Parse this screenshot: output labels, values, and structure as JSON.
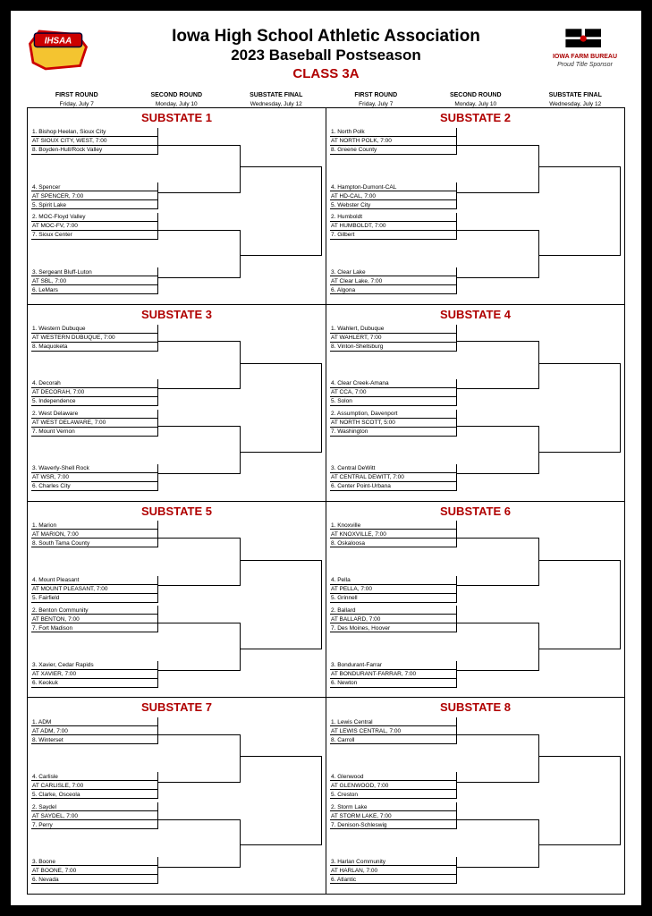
{
  "header": {
    "org": "Iowa High School Athletic Association",
    "event": "2023 Baseball Postseason",
    "class": "CLASS 3A",
    "sponsor_name": "IOWA FARM BUREAU",
    "sponsor_tag": "Proud Title Sponsor"
  },
  "rounds": {
    "r1": {
      "label": "FIRST ROUND",
      "date": "Friday, July 7"
    },
    "r2": {
      "label": "SECOND ROUND",
      "date": "Monday, July 10"
    },
    "r3": {
      "label": "SUBSTATE FINAL",
      "date": "Wednesday, July 12"
    }
  },
  "colors": {
    "accent": "#b00000",
    "border": "#000000"
  },
  "substates": [
    {
      "title": "SUBSTATE 1",
      "games": [
        {
          "top": "1. Bishop Heelan, Sioux City",
          "loc": "AT SIOUX CITY, WEST, 7:00",
          "bot": "8. Boyden-Hull/Rock Valley"
        },
        {
          "top": "4. Spencer",
          "loc": "AT SPENCER, 7:00",
          "bot": "5. Spirit Lake"
        },
        {
          "top": "2. MOC-Floyd Valley",
          "loc": "AT MOC-FV, 7:00",
          "bot": "7. Sioux Center"
        },
        {
          "top": "3. Sergeant Bluff-Luton",
          "loc": "AT SBL, 7:00",
          "bot": "6. LeMars"
        }
      ]
    },
    {
      "title": "SUBSTATE 2",
      "games": [
        {
          "top": "1. North Polk",
          "loc": "AT NORTH POLK, 7:00",
          "bot": "8. Greene County"
        },
        {
          "top": "4. Hampton-Dumont-CAL",
          "loc": "AT HD-CAL, 7:00",
          "bot": "5. Webster City"
        },
        {
          "top": "2. Humboldt",
          "loc": "AT HUMBOLDT, 7:00",
          "bot": "7. Gilbert"
        },
        {
          "top": "3. Clear Lake",
          "loc": "AT Clear Lake, 7:00",
          "bot": "6. Algona"
        }
      ]
    },
    {
      "title": "SUBSTATE 3",
      "games": [
        {
          "top": "1. Western Dubuque",
          "loc": "AT WESTERN DUBUQUE, 7:00",
          "bot": "8. Maquoketa"
        },
        {
          "top": "4. Decorah",
          "loc": "AT DECORAH, 7:00",
          "bot": "5. Independence"
        },
        {
          "top": "2. West Delaware",
          "loc": "AT WEST DELAWARE, 7:00",
          "bot": "7. Mount Vernon"
        },
        {
          "top": "3. Waverly-Shell Rock",
          "loc": "AT WSR, 7:00",
          "bot": "6. Charles City"
        }
      ]
    },
    {
      "title": "SUBSTATE 4",
      "games": [
        {
          "top": "1. Wahlert, Dubuque",
          "loc": "AT WAHLERT, 7:00",
          "bot": "8. Vinton-Shellsburg"
        },
        {
          "top": "4. Clear Creek-Amana",
          "loc": "AT CCA, 7:00",
          "bot": "5. Solon"
        },
        {
          "top": "2. Assumption, Davenport",
          "loc": "AT NORTH SCOTT, 5:00",
          "bot": "7. Washington"
        },
        {
          "top": "3. Central DeWitt",
          "loc": "AT CENTRAL DEWITT, 7:00",
          "bot": "6. Center Point-Urbana"
        }
      ]
    },
    {
      "title": "SUBSTATE 5",
      "games": [
        {
          "top": "1. Marion",
          "loc": "AT MARION, 7:00",
          "bot": "8. South Tama County"
        },
        {
          "top": "4. Mount Pleasant",
          "loc": "AT MOUNT PLEASANT, 7:00",
          "bot": "5. Fairfield"
        },
        {
          "top": "2. Benton Community",
          "loc": "AT BENTON, 7:00",
          "bot": "7. Fort Madison"
        },
        {
          "top": "3. Xavier, Cedar Rapids",
          "loc": "AT XAVIER, 7:00",
          "bot": "6. Keokuk"
        }
      ]
    },
    {
      "title": "SUBSTATE 6",
      "games": [
        {
          "top": "1. Knoxville",
          "loc": "AT KNOXVILLE, 7:00",
          "bot": "8. Oskaloosa"
        },
        {
          "top": "4. Pella",
          "loc": "AT PELLA, 7:00",
          "bot": "5. Grinnell"
        },
        {
          "top": "2. Ballard",
          "loc": "AT BALLARD, 7:00",
          "bot": "7. Des Moines, Hoover"
        },
        {
          "top": "3. Bondurant-Farrar",
          "loc": "AT BONDURANT-FARRAR, 7:00",
          "bot": "6. Newton"
        }
      ]
    },
    {
      "title": "SUBSTATE 7",
      "games": [
        {
          "top": "1. ADM",
          "loc": "AT ADM, 7:00",
          "bot": "8. Winterset"
        },
        {
          "top": "4. Carlisle",
          "loc": "AT CARLISLE, 7:00",
          "bot": "5. Clarke, Osceola"
        },
        {
          "top": "2. Saydel",
          "loc": "AT SAYDEL, 7:00",
          "bot": "7. Perry"
        },
        {
          "top": "3. Boone",
          "loc": "AT BOONE, 7:00",
          "bot": "6. Nevada"
        }
      ]
    },
    {
      "title": "SUBSTATE 8",
      "games": [
        {
          "top": "1. Lewis Central",
          "loc": "AT LEWIS CENTRAL, 7:00",
          "bot": "8. Carroll"
        },
        {
          "top": "4. Glenwood",
          "loc": "AT GLENWOOD, 7:00",
          "bot": "5. Creston"
        },
        {
          "top": "2. Storm Lake",
          "loc": "AT STORM LAKE, 7:00",
          "bot": "7. Denison-Schleswig"
        },
        {
          "top": "3. Harlan Community",
          "loc": "AT HARLAN, 7:00",
          "bot": "6. Atlantic"
        }
      ]
    }
  ]
}
